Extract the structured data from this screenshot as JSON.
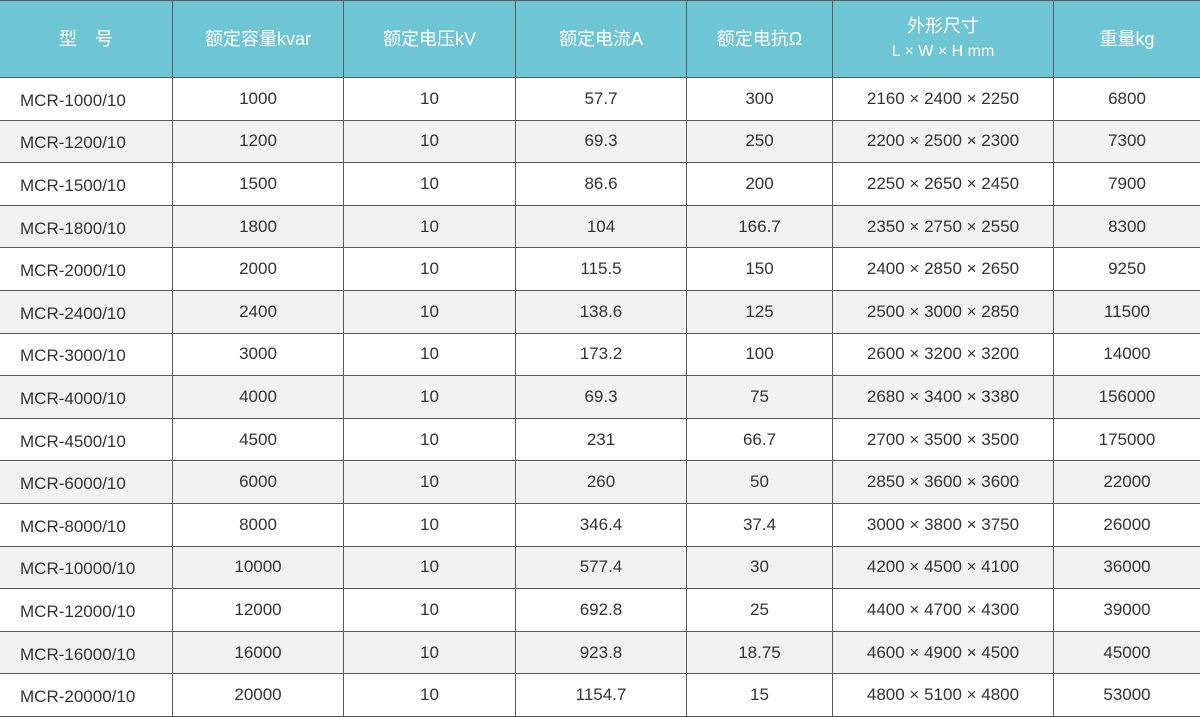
{
  "header": {
    "model": "型　号",
    "capacity": "额定容量kvar",
    "voltage": "额定电压kV",
    "current": "额定电流A",
    "reactance": "额定电抗Ω",
    "dimensions": "外形尺寸",
    "dimensions_unit": "L × W × H mm",
    "weight": "重量kg"
  },
  "header_color": "#6ec5d4",
  "rows": [
    [
      "MCR-1000/10",
      "1000",
      "10",
      "57.7",
      "300",
      "2160 × 2400 × 2250",
      "6800"
    ],
    [
      "MCR-1200/10",
      "1200",
      "10",
      "69.3",
      "250",
      "2200 × 2500 × 2300",
      "7300"
    ],
    [
      "MCR-1500/10",
      "1500",
      "10",
      "86.6",
      "200",
      "2250 × 2650 × 2450",
      "7900"
    ],
    [
      "MCR-1800/10",
      "1800",
      "10",
      "104",
      "166.7",
      "2350 × 2750 × 2550",
      "8300"
    ],
    [
      "MCR-2000/10",
      "2000",
      "10",
      "115.5",
      "150",
      "2400 × 2850 × 2650",
      "9250"
    ],
    [
      "MCR-2400/10",
      "2400",
      "10",
      "138.6",
      "125",
      "2500 × 3000 × 2850",
      "11500"
    ],
    [
      "MCR-3000/10",
      "3000",
      "10",
      "173.2",
      "100",
      "2600 × 3200 × 3200",
      "14000"
    ],
    [
      "MCR-4000/10",
      "4000",
      "10",
      "69.3",
      "75",
      "2680 × 3400 × 3380",
      "156000"
    ],
    [
      "MCR-4500/10",
      "4500",
      "10",
      "231",
      "66.7",
      "2700 × 3500 × 3500",
      "175000"
    ],
    [
      "MCR-6000/10",
      "6000",
      "10",
      "260",
      "50",
      "2850 × 3600 × 3600",
      "22000"
    ],
    [
      "MCR-8000/10",
      "8000",
      "10",
      "346.4",
      "37.4",
      "3000 × 3800 × 3750",
      "26000"
    ],
    [
      "MCR-10000/10",
      "10000",
      "10",
      "577.4",
      "30",
      "4200 × 4500 × 4100",
      "36000"
    ],
    [
      "MCR-12000/10",
      "12000",
      "10",
      "692.8",
      "25",
      "4400 × 4700 × 4300",
      "39000"
    ],
    [
      "MCR-16000/10",
      "16000",
      "10",
      "923.8",
      "18.75",
      "4600 × 4900 × 4500",
      "45000"
    ],
    [
      "MCR-20000/10",
      "20000",
      "10",
      "1154.7",
      "15",
      "4800 × 5100 × 4800",
      "53000"
    ]
  ]
}
